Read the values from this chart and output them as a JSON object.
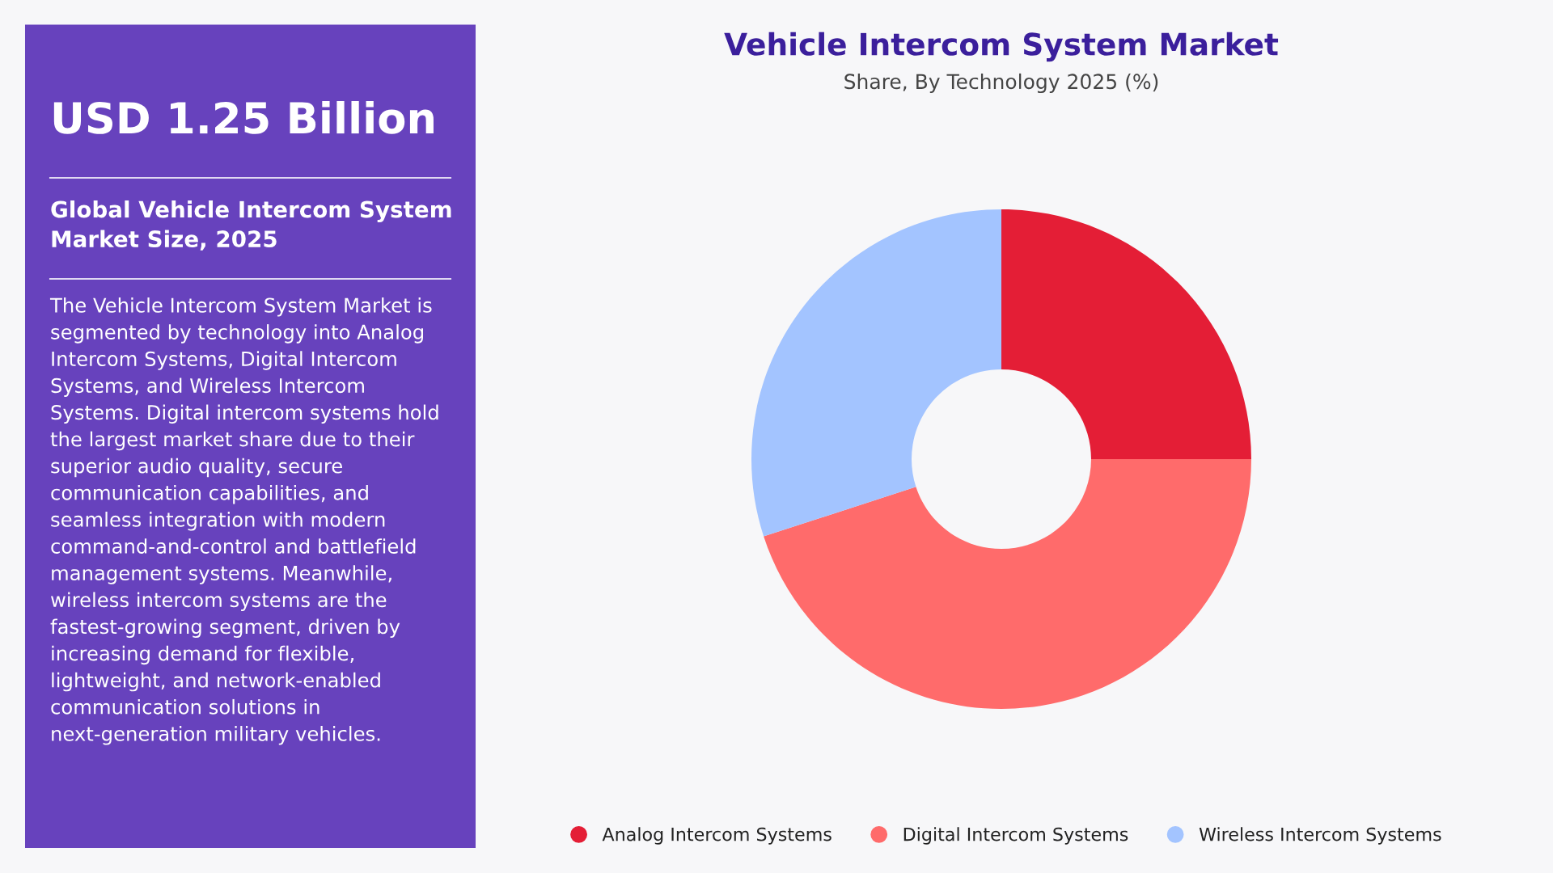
{
  "chart_data": {
    "type": "donut",
    "title": "Vehicle Intercom System Market",
    "subtitle": "Share, By Technology 2025 (%)",
    "categories": [
      "Analog Intercom Systems",
      "Digital Intercom Systems",
      "Wireless Intercom Systems"
    ],
    "values": [
      25,
      45,
      30
    ],
    "colors": [
      "#e41e36",
      "#ff6b6b",
      "#a3c4ff"
    ],
    "legend": "bottom",
    "annotations": [
      "USD 1.25 Billion",
      "Global Vehicle Intercom System Market Size, 2025",
      "The Vehicle Intercom System Market is segmented by technology into Analog Intercom Systems, Digital Intercom Systems, and Wireless Intercom Systems. Digital intercom systems hold the largest market share due to their superior audio quality, secure communication capabilities, and seamless integration with modern command-and-control and battlefield management systems. Meanwhile, wireless intercom systems are the fastest-growing segment, driven by increasing demand for flexible, lightweight, and network-enabled communication solutions in next-generation military vehicles."
    ]
  }
}
